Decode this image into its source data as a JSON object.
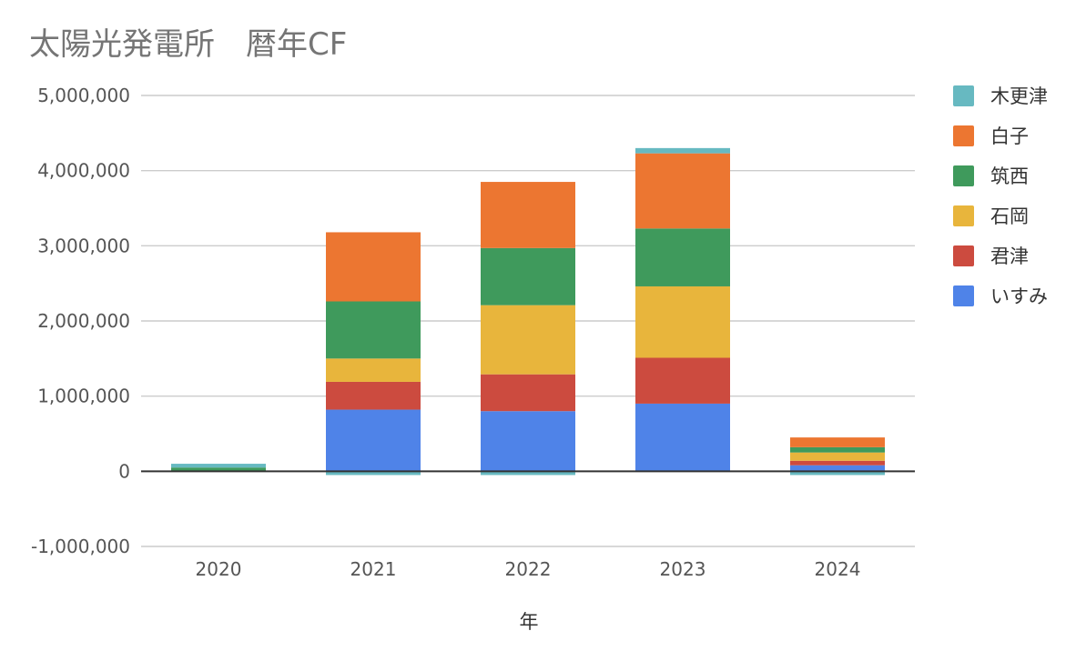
{
  "chart_data": {
    "type": "bar",
    "stacked": true,
    "title": "太陽光発電所　暦年CF",
    "xlabel": "年",
    "ylabel": "",
    "categories": [
      "2020",
      "2021",
      "2022",
      "2023",
      "2024"
    ],
    "ylim": [
      -1000000,
      5000000
    ],
    "yticks": [
      -1000000,
      0,
      1000000,
      2000000,
      3000000,
      4000000,
      5000000
    ],
    "ytick_labels": [
      "-1,000,000",
      "0",
      "1,000,000",
      "2,000,000",
      "3,000,000",
      "4,000,000",
      "5,000,000"
    ],
    "grid": true,
    "legend_position": "right",
    "series": [
      {
        "name": "いすみ",
        "color": "#4f83e8",
        "values": [
          0,
          820000,
          800000,
          900000,
          80000
        ]
      },
      {
        "name": "君津",
        "color": "#cc4b3f",
        "values": [
          0,
          370000,
          490000,
          610000,
          60000
        ]
      },
      {
        "name": "石岡",
        "color": "#e8b53c",
        "values": [
          0,
          310000,
          920000,
          950000,
          110000
        ]
      },
      {
        "name": "筑西",
        "color": "#3f9a5c",
        "values": [
          50000,
          760000,
          760000,
          770000,
          70000
        ]
      },
      {
        "name": "白子",
        "color": "#ec7631",
        "values": [
          0,
          920000,
          880000,
          1000000,
          130000
        ]
      },
      {
        "name": "木更津",
        "color": "#67b9c1",
        "values": [
          50000,
          -50000,
          -50000,
          70000,
          -50000
        ]
      }
    ]
  }
}
